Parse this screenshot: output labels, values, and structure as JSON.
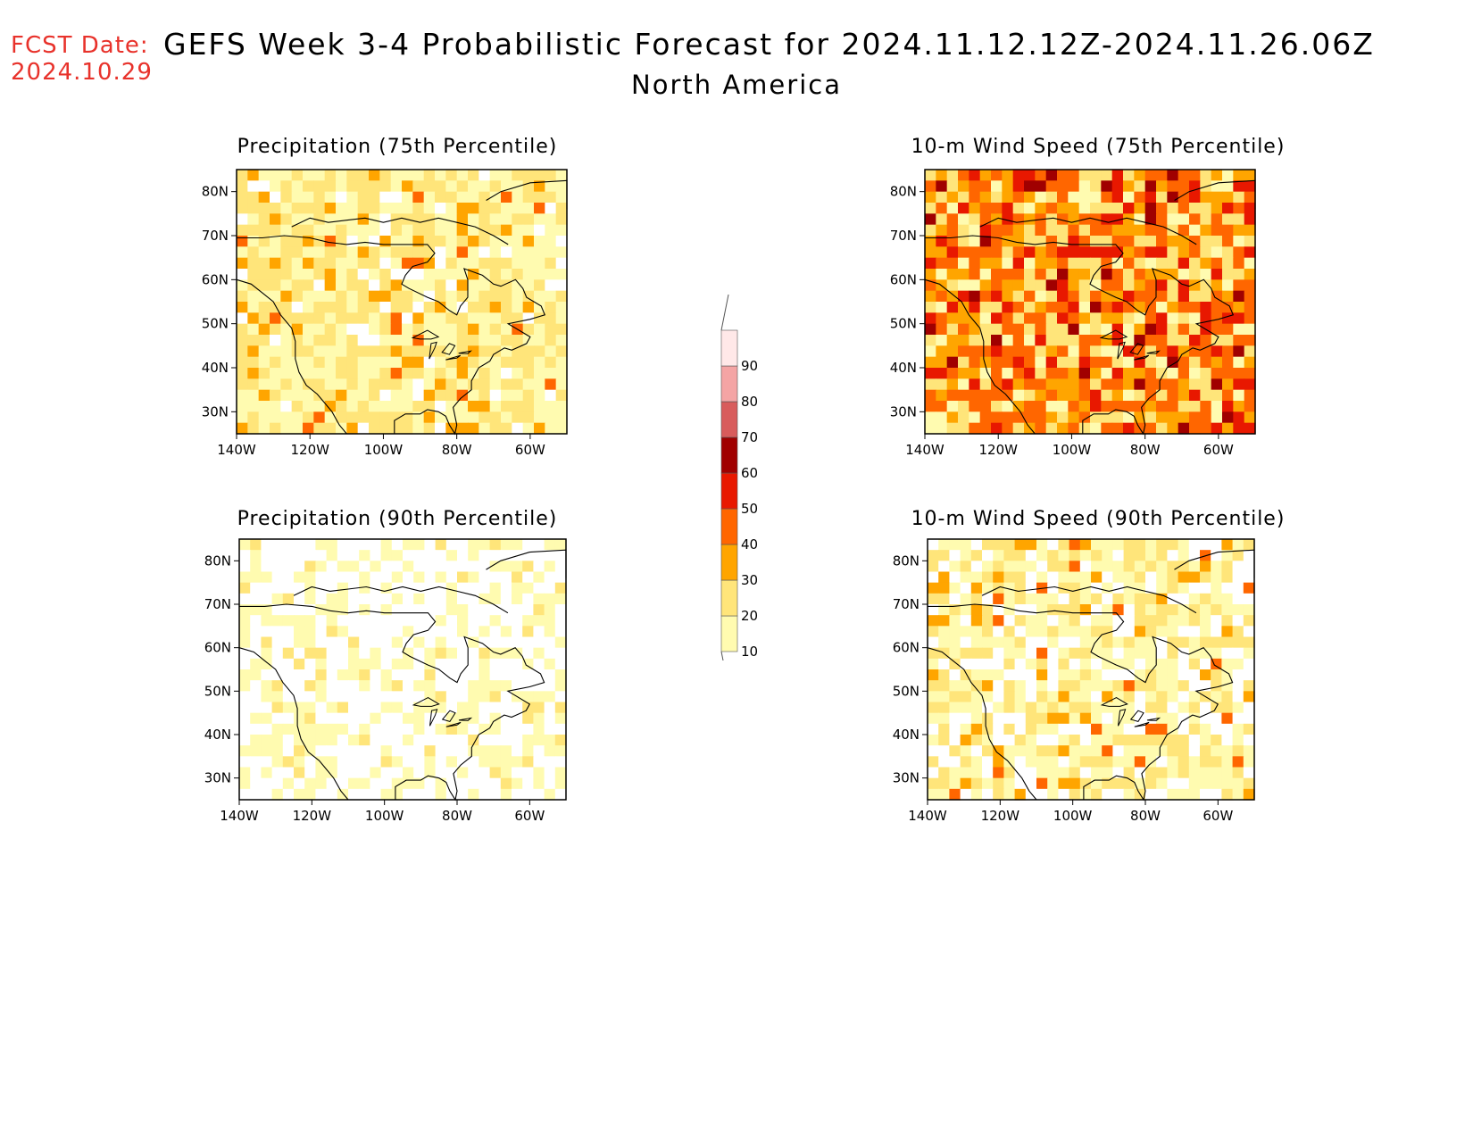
{
  "header": {
    "fcst_label": "FCST Date:",
    "fcst_date": "2024.10.29",
    "title": "GEFS Week 3-4 Probabilistic Forecast for 2024.11.12.12Z-2024.11.26.06Z",
    "region": "North America"
  },
  "maps": [
    {
      "id": "precip75",
      "title": "Precipitation (75th Percentile)"
    },
    {
      "id": "wind75",
      "title": "10-m Wind Speed (75th Percentile)"
    },
    {
      "id": "precip90",
      "title": "Precipitation (90th Percentile)"
    },
    {
      "id": "wind90",
      "title": "10-m Wind Speed (90th Percentile)"
    }
  ],
  "axes": {
    "lon_ticks": [
      "140W",
      "120W",
      "100W",
      "80W",
      "60W"
    ],
    "lat_ticks": [
      "80N",
      "70N",
      "60N",
      "50N",
      "40N",
      "30N"
    ],
    "lon_range": [
      -140,
      -50
    ],
    "lat_range": [
      25,
      85
    ]
  },
  "colorbar": {
    "levels": [
      "10",
      "20",
      "30",
      "40",
      "50",
      "60",
      "70",
      "80",
      "90"
    ],
    "colors": [
      "#fffbb0",
      "#ffe57a",
      "#ffa500",
      "#ff6600",
      "#e81800",
      "#a00000",
      "#d85c5c",
      "#f4a4a4",
      "#ffe8e8"
    ]
  }
}
